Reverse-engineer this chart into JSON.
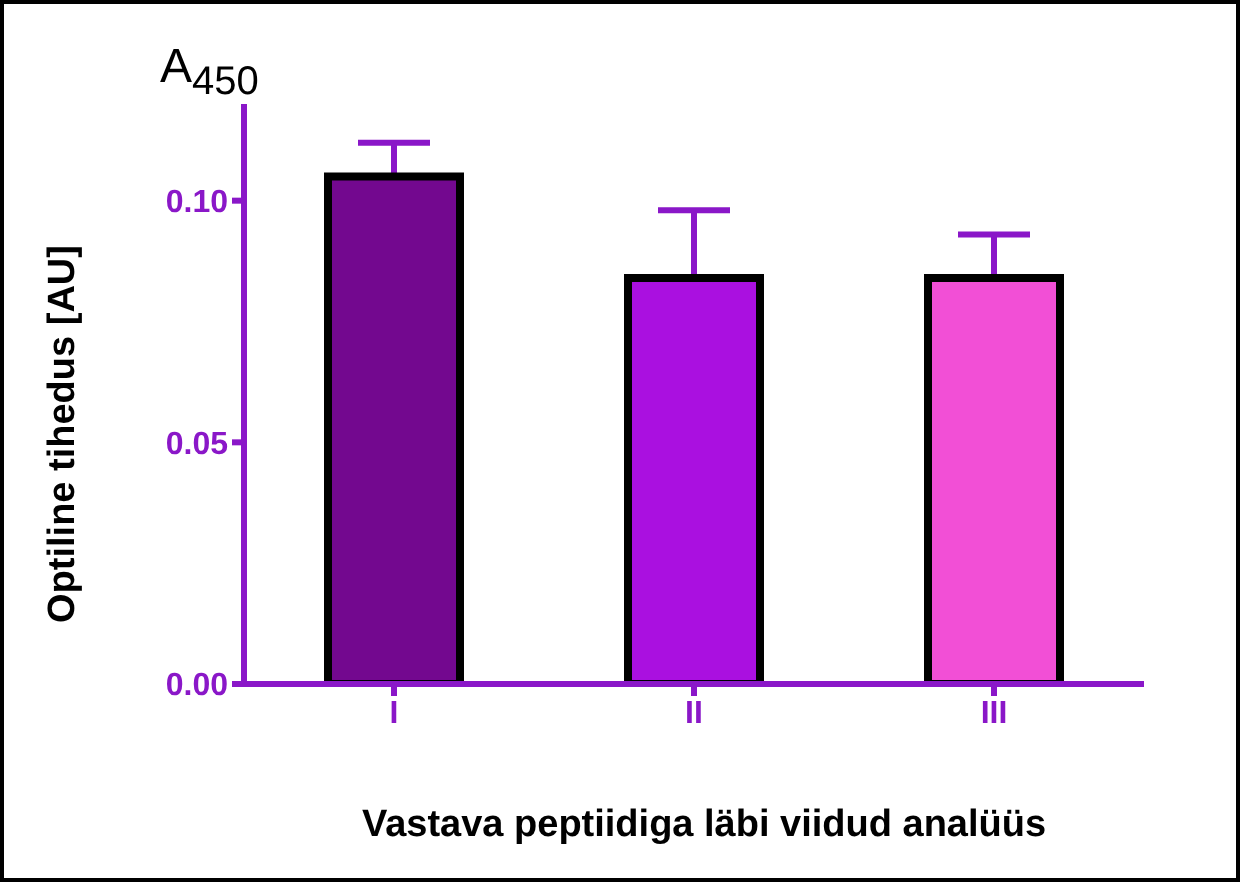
{
  "chart_data": {
    "type": "bar",
    "xlabel": "Vastava peptiidiga läbi viidud analüüs",
    "ylabel": "Optiline tihedus [AU]",
    "annotations": [
      "A$_{450}$"
    ],
    "categories": [
      "I",
      "II",
      "III"
    ],
    "values": [
      0.105,
      0.084,
      0.084
    ],
    "errors": [
      0.007,
      0.014,
      0.009
    ],
    "colors": [
      "#73088f",
      "#aa10e0",
      "#f24fd6"
    ],
    "ylim": [
      0,
      0.12
    ],
    "yticks": [
      {
        "value": 0,
        "label": "0.00"
      },
      {
        "value": 0.05,
        "label": "0.05"
      },
      {
        "value": 0.1,
        "label": "0.10"
      }
    ],
    "grid": false,
    "legend": false
  }
}
